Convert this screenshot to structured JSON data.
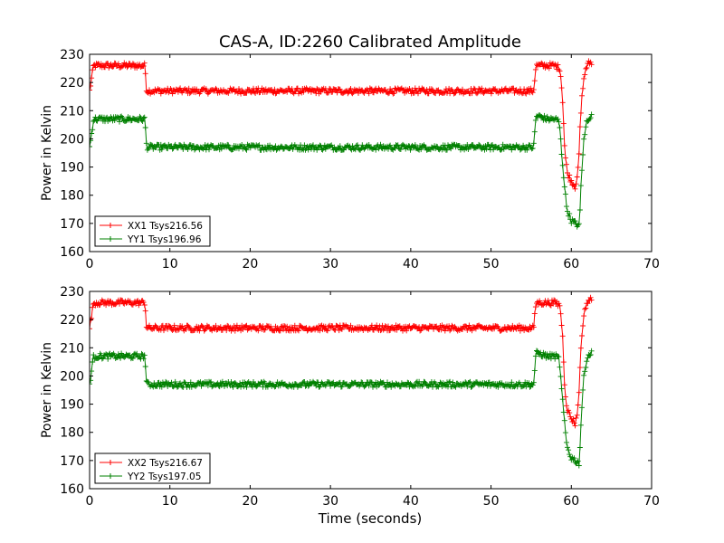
{
  "figure": {
    "title": "CAS-A, ID:2260 Calibrated Amplitude",
    "xlabel": "Time (seconds)"
  },
  "colors": {
    "XX": "#ff0000",
    "YY": "#008000",
    "axes": "#000000",
    "background": "#ffffff"
  },
  "chart_data": [
    {
      "type": "line",
      "panel": "top",
      "title": "CAS-A, ID:2260 Calibrated Amplitude",
      "xlabel": "",
      "ylabel": "Power in Kelvin",
      "xlim": [
        0,
        70
      ],
      "ylim": [
        160,
        230
      ],
      "xticks": [
        0,
        10,
        20,
        30,
        40,
        50,
        60,
        70
      ],
      "yticks": [
        160,
        170,
        180,
        190,
        200,
        210,
        220,
        230
      ],
      "grid": false,
      "legend_loc": "lower-left",
      "series": [
        {
          "name": "XX1 Tsys216.56",
          "color": "#ff0000",
          "marker": "+",
          "x": [
            0,
            0.5,
            1,
            2,
            3,
            4,
            5,
            6,
            6.9,
            7.1,
            7.5,
            10,
            15,
            20,
            25,
            30,
            35,
            40,
            45,
            50,
            55.3,
            55.6,
            56,
            57,
            58,
            58.6,
            58.9,
            59.2,
            59.5,
            60,
            60.5,
            60.9,
            61.1,
            61.4,
            61.8,
            62.2,
            62.6
          ],
          "y": [
            217,
            226,
            226,
            226,
            226,
            226,
            226,
            226,
            226,
            217,
            217,
            217,
            217,
            217,
            217,
            217,
            217,
            217,
            217,
            217,
            217,
            226,
            226,
            226,
            226,
            225,
            215,
            195,
            188,
            185,
            183,
            190,
            205,
            218,
            225,
            227,
            227
          ]
        },
        {
          "name": "YY1 Tsys196.96",
          "color": "#008000",
          "marker": "+",
          "x": [
            0,
            0.5,
            1,
            2,
            3,
            4,
            5,
            6,
            6.9,
            7.1,
            7.5,
            10,
            15,
            20,
            25,
            30,
            35,
            40,
            45,
            50,
            55.3,
            55.6,
            56,
            57,
            58,
            58.5,
            58.8,
            59.1,
            59.4,
            59.7,
            60,
            60.5,
            61,
            61.2,
            61.5,
            61.9,
            62.3,
            62.6
          ],
          "y": [
            197,
            207,
            207,
            207,
            207,
            207,
            207,
            207,
            207,
            197,
            197,
            197,
            197,
            197,
            197,
            197,
            197,
            197,
            197,
            197,
            197,
            208,
            208,
            207,
            207,
            206,
            195,
            185,
            176,
            173,
            171,
            170,
            169,
            183,
            198,
            206,
            208,
            208
          ]
        }
      ]
    },
    {
      "type": "line",
      "panel": "bottom",
      "title": "",
      "xlabel": "Time (seconds)",
      "ylabel": "Power in Kelvin",
      "xlim": [
        0,
        70
      ],
      "ylim": [
        160,
        230
      ],
      "xticks": [
        0,
        10,
        20,
        30,
        40,
        50,
        60,
        70
      ],
      "yticks": [
        160,
        170,
        180,
        190,
        200,
        210,
        220,
        230
      ],
      "grid": false,
      "legend_loc": "lower-left",
      "series": [
        {
          "name": "XX2 Tsys216.67",
          "color": "#ff0000",
          "marker": "+",
          "x": [
            0,
            0.5,
            1,
            2,
            3,
            4,
            5,
            6,
            6.9,
            7.1,
            7.5,
            10,
            15,
            20,
            25,
            30,
            35,
            40,
            45,
            50,
            55.3,
            55.6,
            56,
            57,
            58,
            58.6,
            58.9,
            59.2,
            59.5,
            60,
            60.5,
            60.9,
            61.1,
            61.4,
            61.8,
            62.2,
            62.6
          ],
          "y": [
            217,
            226,
            226,
            226,
            226,
            226,
            226,
            226,
            226,
            217,
            217,
            217,
            217,
            217,
            217,
            217,
            217,
            217,
            217,
            217,
            217,
            226,
            226,
            226,
            226,
            225,
            215,
            195,
            188,
            185,
            183,
            190,
            205,
            218,
            225,
            227,
            227
          ]
        },
        {
          "name": "YY2 Tsys197.05",
          "color": "#008000",
          "marker": "+",
          "x": [
            0,
            0.5,
            1,
            2,
            3,
            4,
            5,
            6,
            6.9,
            7.1,
            7.5,
            10,
            15,
            20,
            25,
            30,
            35,
            40,
            45,
            50,
            55.3,
            55.6,
            56,
            57,
            58,
            58.5,
            58.8,
            59.1,
            59.4,
            59.7,
            60,
            60.5,
            61,
            61.2,
            61.5,
            61.9,
            62.3,
            62.6
          ],
          "y": [
            197,
            207,
            207,
            207,
            207,
            207,
            207,
            207,
            207,
            197,
            197,
            197,
            197,
            197,
            197,
            197,
            197,
            197,
            197,
            197,
            197,
            208,
            208,
            207,
            207,
            206,
            195,
            185,
            176,
            173,
            171,
            170,
            169,
            183,
            198,
            206,
            208,
            208
          ]
        }
      ]
    }
  ]
}
